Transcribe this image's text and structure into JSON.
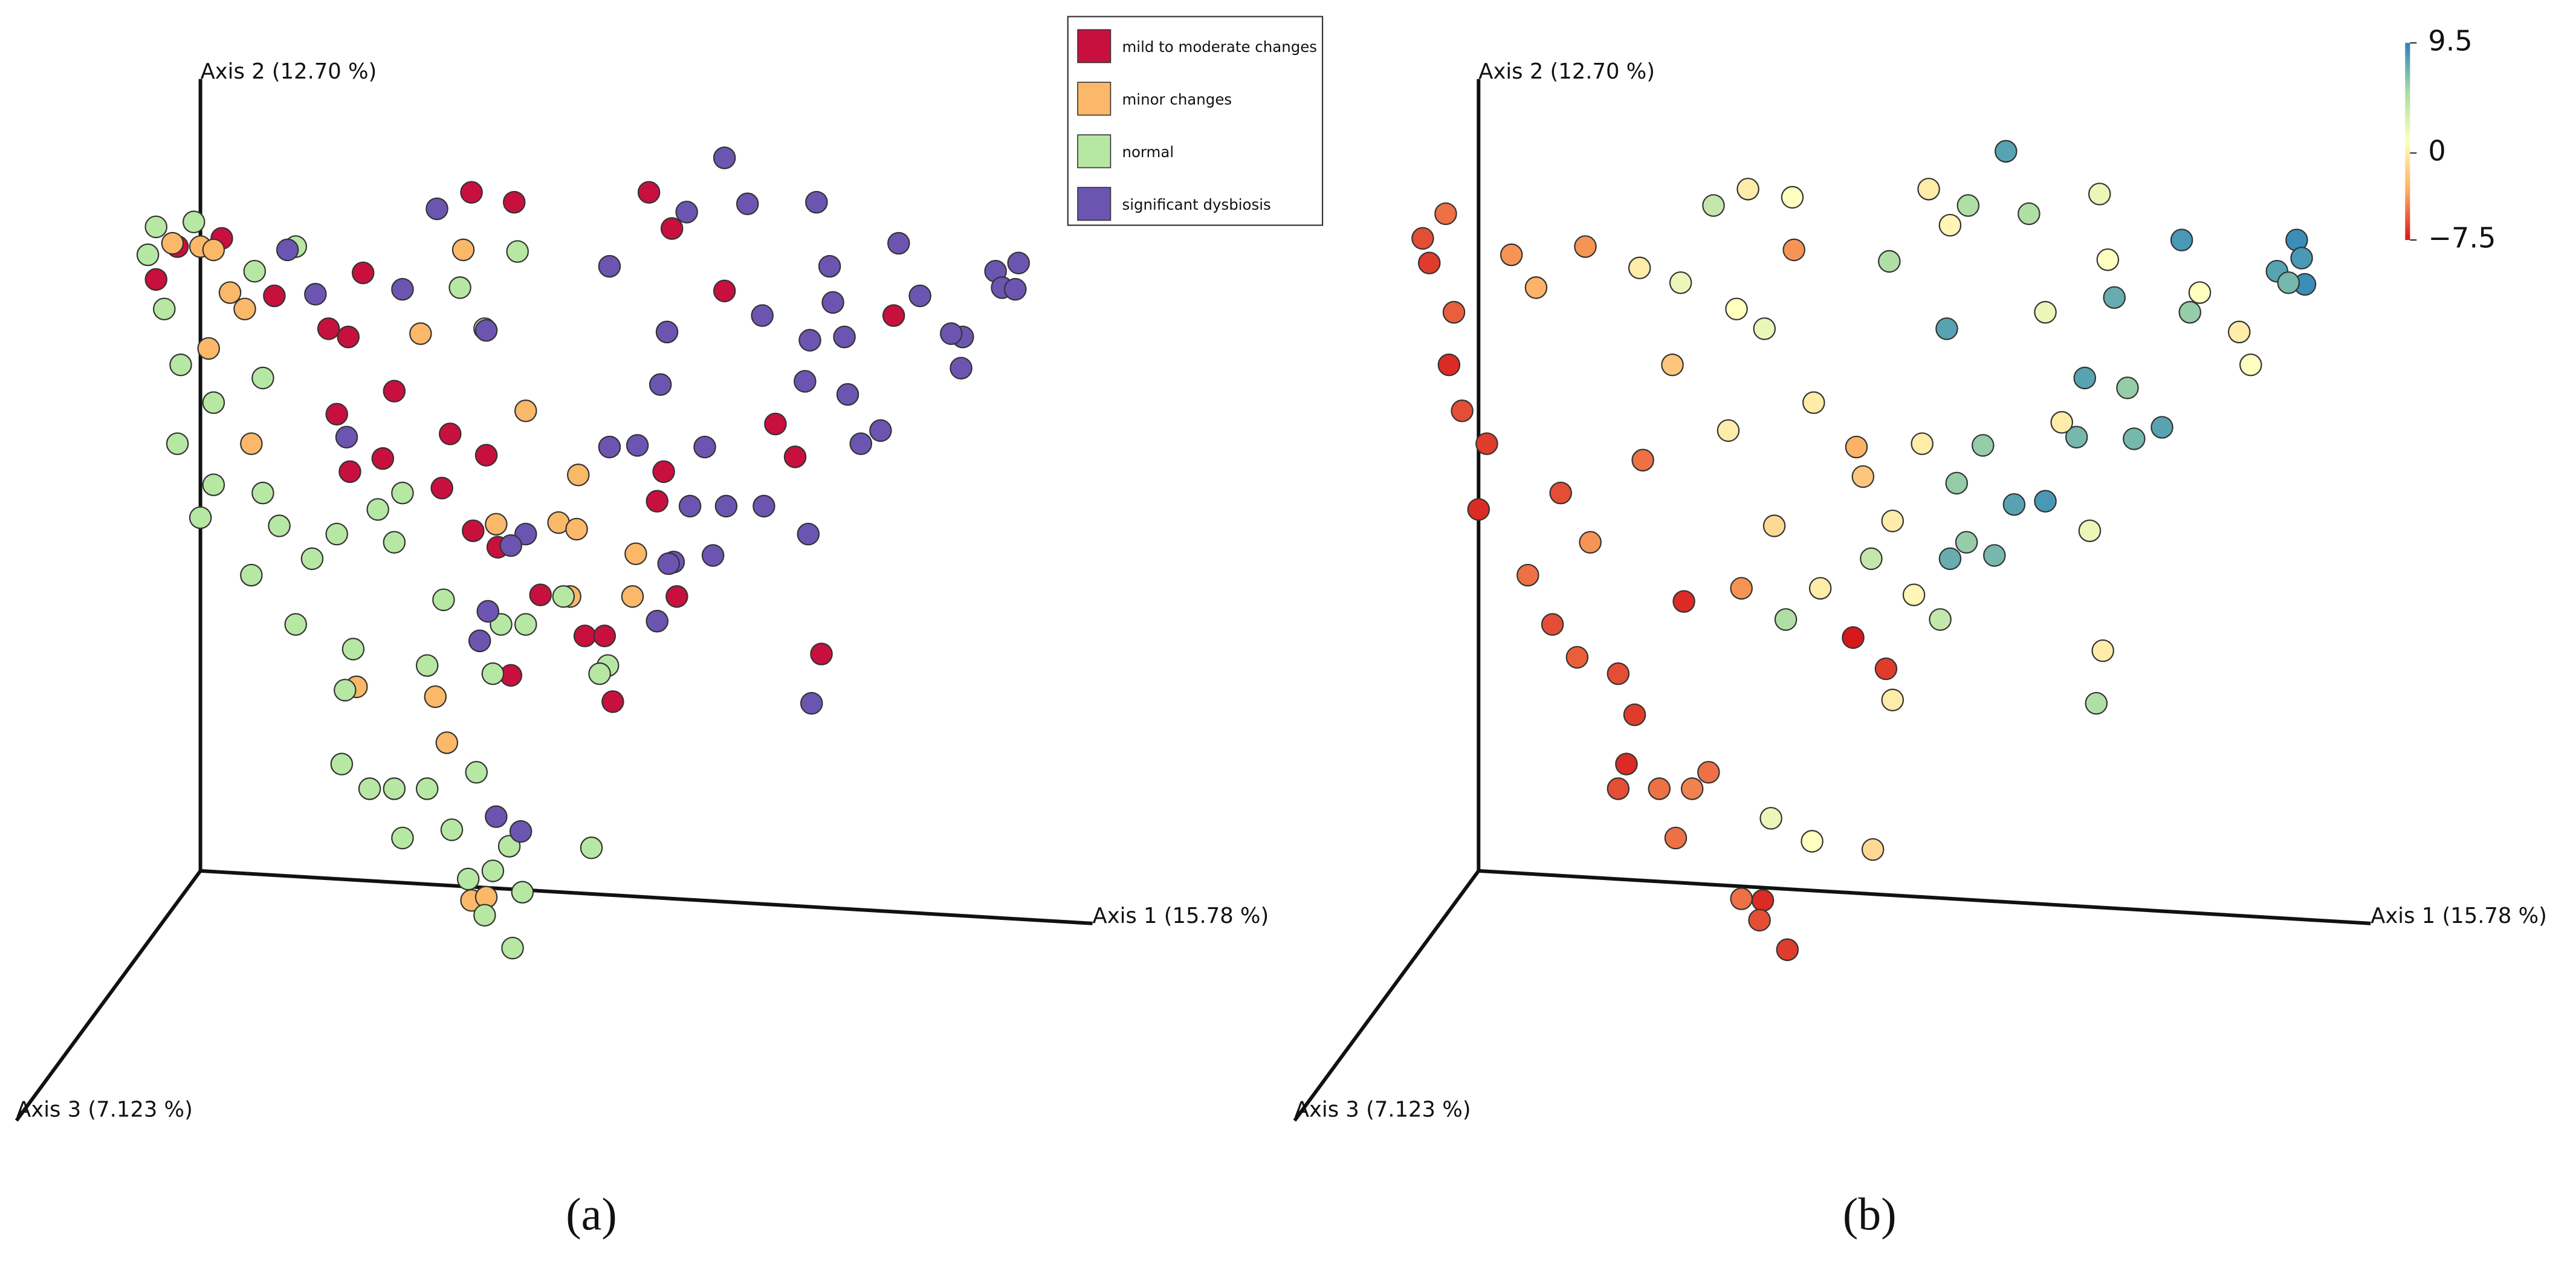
{
  "chart_data": [
    {
      "type": "scatter",
      "caption": "(a)",
      "axis_labels": [
        "Axis 1 (15.78 %)",
        "Axis 2 (12.70 %)",
        "Axis 3 (7.123 %)"
      ],
      "xlim": [
        0,
        560
      ],
      "ylim": [
        0,
        510
      ],
      "series": [
        {
          "name": "mild to moderate changes",
          "color": "#c8103e",
          "x": [
            207,
            233,
            315,
            329,
            55,
            141,
            87,
            120,
            132,
            160,
            125,
            153,
            133,
            194,
            216,
            189,
            208,
            223,
            249,
            276,
            288,
            231,
            293,
            332,
            324,
            320,
            392,
            404,
            361,
            464,
            420,
            28,
            15
          ],
          "y": [
            483,
            477,
            483,
            461,
            455,
            434,
            420,
            400,
            395,
            362,
            348,
            321,
            313,
            336,
            323,
            303,
            277,
            267,
            238,
            213,
            213,
            189,
            173,
            237,
            313,
            295,
            342,
            322,
            423,
            408,
            202,
            450,
            430
          ]
        },
        {
          "name": "minor changes",
          "color": "#fbb868",
          "x": [
            202,
            176,
            240,
            272,
            222,
            260,
            271,
            307,
            305,
            267,
            47,
            73,
            60,
            69,
            42,
            25,
            137,
            185,
            192,
            207,
            216,
            50
          ],
          "y": [
            448,
            397,
            350,
            311,
            281,
            282,
            278,
            263,
            237,
            237,
            388,
            330,
            422,
            412,
            450,
            452,
            182,
            176,
            148,
            52,
            54,
            448
          ]
        },
        {
          "name": "normal",
          "color": "#b6e8a3",
          "x": [
            15,
            38,
            10,
            20,
            30,
            50,
            28,
            50,
            42,
            73,
            80,
            90,
            100,
            110,
            125,
            135,
            130,
            145,
            160,
            180,
            165,
            195,
            210,
            230,
            220,
            205,
            238,
            232,
            215,
            280,
            165,
            150,
            190,
            225,
            240,
            290,
            220,
            263,
            235,
            200,
            215,
            100,
            75,
            80,
            160,
            180,
            128,
            285
          ],
          "y": [
            462,
            465,
            445,
            412,
            378,
            355,
            330,
            305,
            285,
            250,
            300,
            280,
            220,
            260,
            275,
            205,
            180,
            120,
            120,
            120,
            90,
            95,
            130,
            85,
            70,
            65,
            57,
            23,
            43,
            84,
            300,
            290,
            235,
            220,
            220,
            195,
            190,
            237,
            447,
            425,
            400,
            450,
            435,
            370,
            270,
            195,
            135,
            190
          ]
        },
        {
          "name": "significant dysbiosis",
          "color": "#6c55b1",
          "x": [
            186,
            95,
            112,
            165,
            216,
            291,
            326,
            338,
            361,
            375,
            417,
            425,
            467,
            384,
            427,
            413,
            434,
            480,
            506,
            499,
            505,
            526,
            530,
            540,
            538,
            322,
            410,
            436,
            444,
            456,
            291,
            349,
            308,
            362,
            385,
            340,
            412,
            354,
            330,
            320,
            327,
            240,
            231,
            217,
            212,
            222,
            237,
            414,
            131
          ],
          "y": [
            473,
            448,
            421,
            424,
            399,
            438,
            398,
            471,
            504,
            476,
            477,
            438,
            452,
            408,
            416,
            393,
            395,
            420,
            395,
            397,
            376,
            435,
            425,
            440,
            424,
            366,
            368,
            360,
            330,
            338,
            328,
            328,
            329,
            292,
            292,
            292,
            275,
            262,
            258,
            222,
            257,
            275,
            268,
            228,
            210,
            103,
            94,
            172,
            334
          ]
        }
      ]
    },
    {
      "type": "scatter",
      "caption": "(b)",
      "axis_labels": [
        "Axis 1 (15.78 %)",
        "Axis 2 (12.70 %)",
        "Axis 3 (7.123 %)"
      ],
      "xlim": [
        0,
        560
      ],
      "ylim": [
        0,
        510
      ],
      "clim": [
        -7.5,
        9.5
      ],
      "colormap": [
        "#d7191c",
        "#fdae61",
        "#ffffbf",
        "#abdda4",
        "#2b83ba"
      ],
      "cticks": [
        {
          "value": 9.5,
          "label": "9.5"
        },
        0,
        {
          "value": -7.5,
          "label": "−7.5"
        }
      ],
      "x": [
        540,
        543,
        545,
        528,
        535,
        470,
        363,
        429,
        475,
        327,
        411,
        437,
        458,
        406,
        441,
        349,
        368,
        333,
        387,
        339,
        329,
        356,
        292,
        340,
        418,
        185,
        229,
        281,
        323,
        377,
        206,
        233,
        316,
        329,
        420,
        425,
        481,
        505,
        512,
        387,
        397,
        414,
        422,
        165,
        199,
        216,
        246,
        194,
        312,
        276,
        272,
        294,
        222,
        250,
        307,
        294,
        282,
        220,
        245,
        140,
        8,
        22,
        12,
        27,
        24,
        32,
        47,
        42,
        72,
        87,
        102,
        127,
        137,
        132,
        127,
        152,
        172,
        162,
        202,
        215,
        230,
        213,
        62,
        77,
        107,
        142,
        167,
        270,
        290,
        202,
        160,
        234,
        92,
        110,
        182
      ],
      "y": [
        454,
        443,
        427,
        435,
        428,
        454,
        508,
        419,
        410,
        400,
        370,
        364,
        340,
        334,
        333,
        329,
        293,
        306,
        295,
        270,
        260,
        262,
        441,
        475,
        172,
        475,
        223,
        260,
        223,
        470,
        485,
        480,
        485,
        463,
        482,
        442,
        422,
        398,
        378,
        410,
        343,
        277,
        204,
        428,
        412,
        400,
        355,
        338,
        330,
        310,
        328,
        283,
        280,
        242,
        238,
        174,
        83,
        102,
        88,
        437,
        455,
        470,
        440,
        410,
        378,
        350,
        330,
        290,
        250,
        220,
        200,
        190,
        165,
        135,
        120,
        120,
        120,
        90,
        53,
        52,
        22,
        40,
        445,
        425,
        450,
        320,
        234,
        212,
        193,
        242,
        378,
        448,
        300,
        270,
        130
      ],
      "values": [
        9,
        8.5,
        9,
        8,
        7,
        8.5,
        8,
        7.5,
        6,
        8,
        8,
        6,
        8,
        7,
        7,
        6,
        8,
        6,
        8.5,
        6,
        7.5,
        7,
        5,
        5,
        5,
        4,
        5,
        4,
        4,
        5,
        0,
        1,
        0,
        0.5,
        2,
        1,
        1,
        0,
        1,
        2,
        0,
        2,
        0,
        2,
        1,
        2,
        0,
        0,
        0,
        -2,
        -3,
        0,
        -1,
        0,
        0.5,
        0,
        -1,
        2,
        1,
        0,
        -6,
        -5,
        -6.5,
        -5.5,
        -7,
        -6,
        -6.5,
        -7,
        -5,
        -6,
        -5.5,
        -6,
        -6.5,
        -7,
        -6,
        -5,
        -4.5,
        -5,
        -5,
        -7,
        -6.5,
        -6,
        -4,
        -3,
        -4,
        -5,
        -7,
        -7.5,
        -6.5,
        -4,
        -2,
        -4,
        -6,
        -4,
        -5
      ]
    }
  ]
}
